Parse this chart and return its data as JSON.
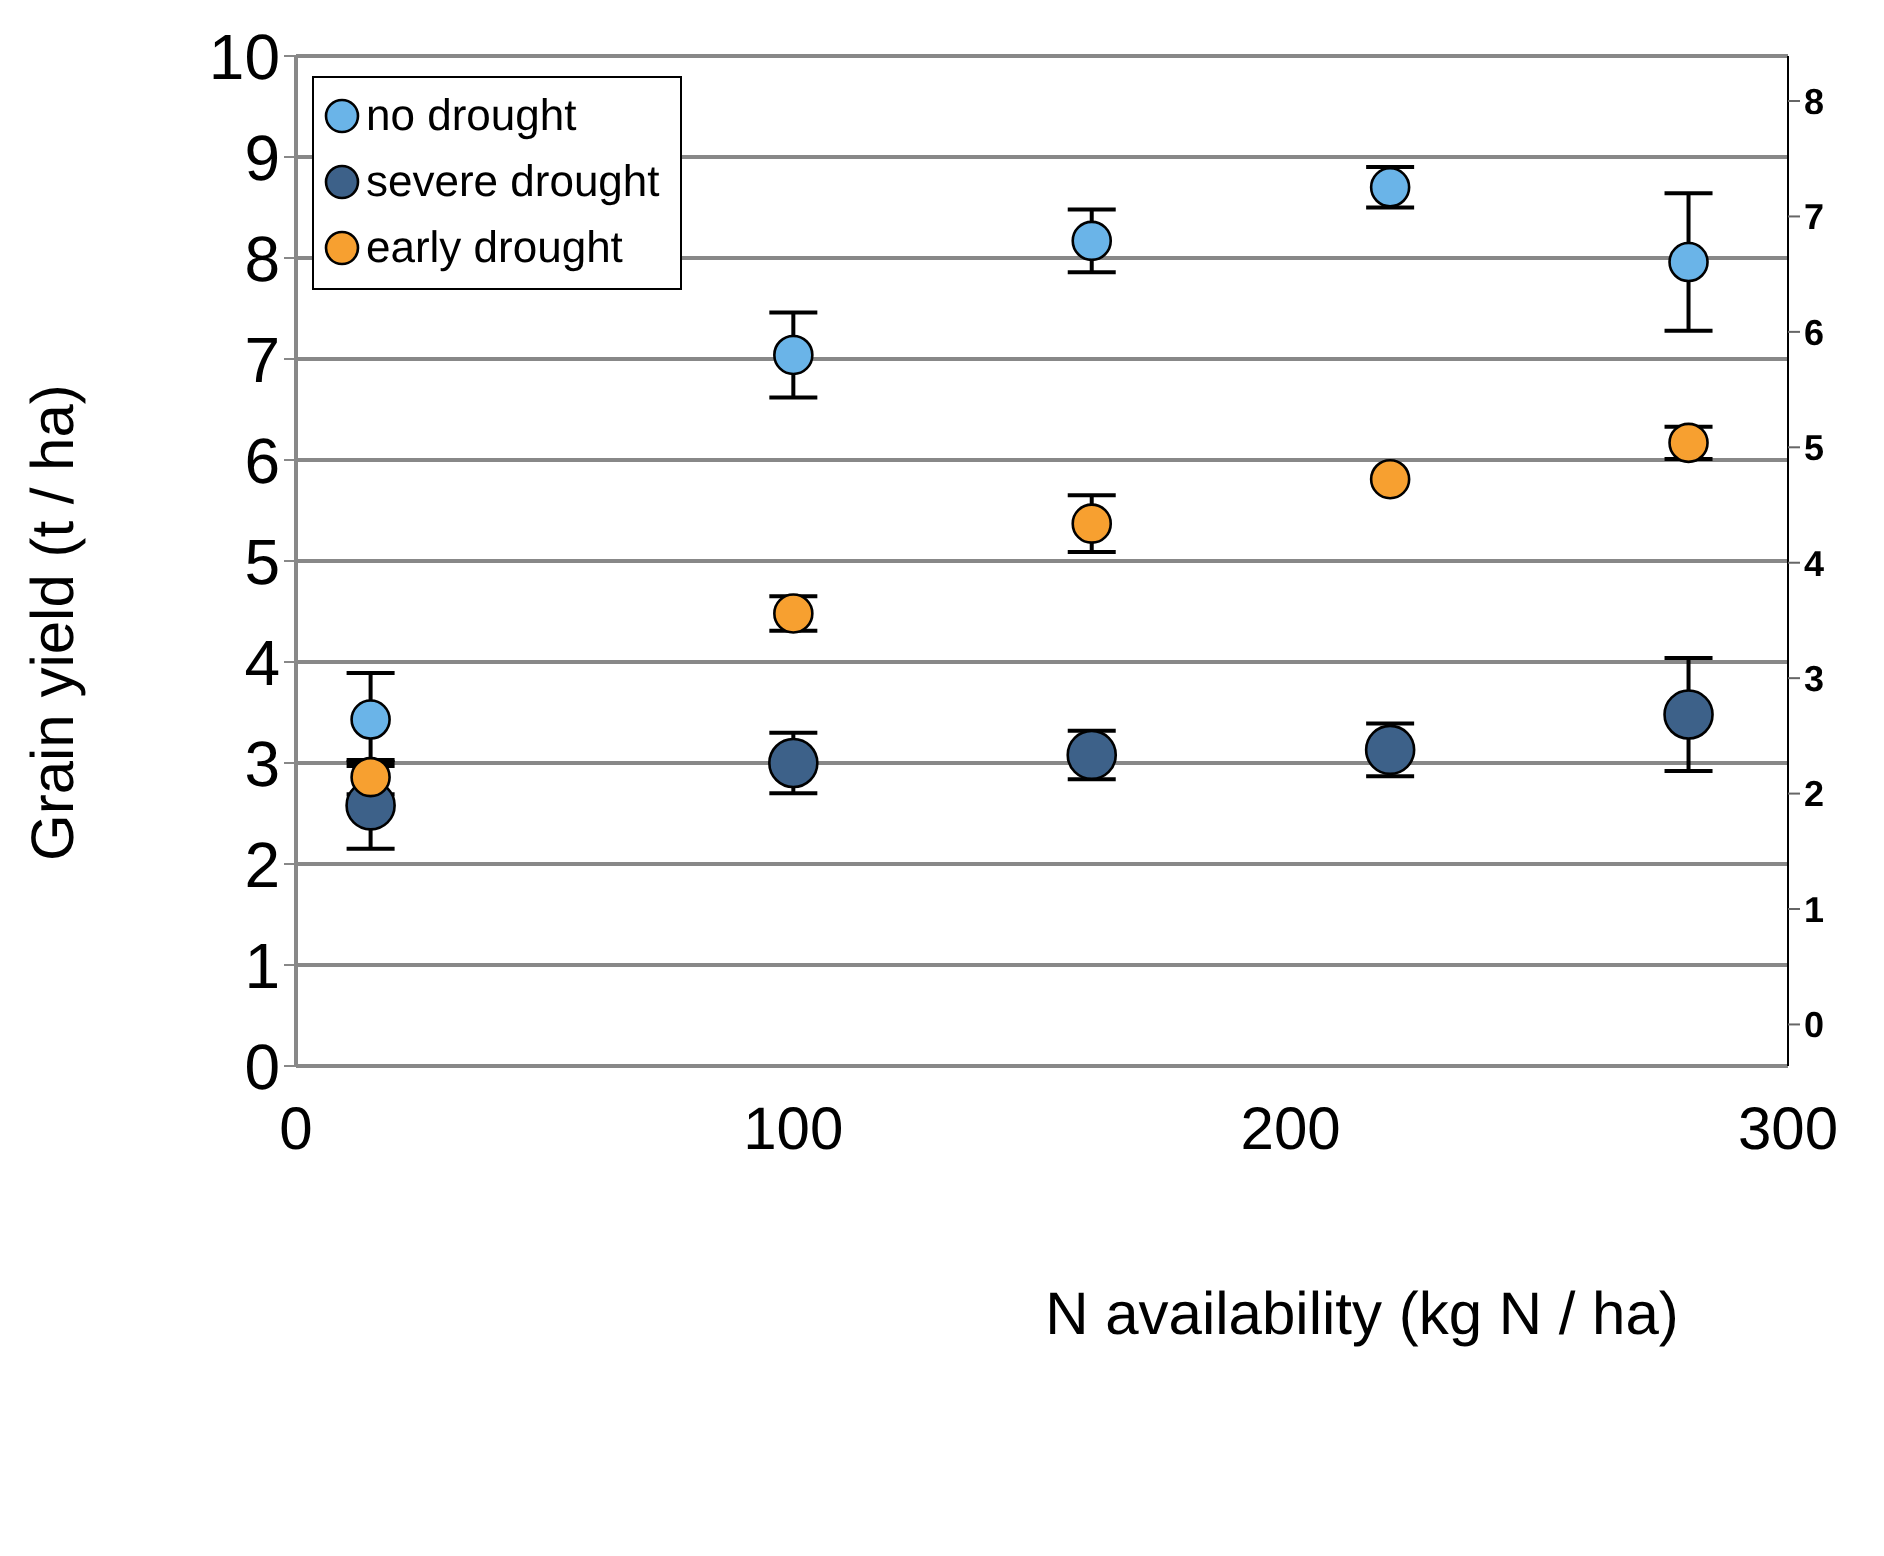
{
  "chart_data": {
    "type": "scatter",
    "xlabel": "N availability (kg N / ha)",
    "ylabel": "Grain yield (t /  ha)",
    "x": [
      15,
      100,
      160,
      220,
      280
    ],
    "series": [
      {
        "name": "no drought",
        "color": "#6ab4e8",
        "values": [
          3.43,
          7.04,
          8.17,
          8.7,
          7.96
        ],
        "errors": [
          0.46,
          0.42,
          0.31,
          0.2,
          0.68
        ]
      },
      {
        "name": "severe drought",
        "color": "#3d6189",
        "values": [
          2.58,
          3.0,
          3.08,
          3.13,
          3.48
        ],
        "errors": [
          0.43,
          0.3,
          0.24,
          0.26,
          0.56
        ]
      },
      {
        "name": "early drought",
        "color": "#f7a030",
        "values": [
          2.86,
          4.48,
          5.37,
          5.81,
          6.17
        ],
        "errors": [
          0.17,
          0.17,
          0.28,
          null,
          0.16
        ]
      }
    ],
    "xlim": [
      0,
      300
    ],
    "xticks": [
      0,
      100,
      200,
      300
    ],
    "ylim": [
      0,
      10
    ],
    "yticks": [
      0,
      1,
      2,
      3,
      4,
      5,
      6,
      7,
      8,
      9,
      10
    ],
    "y2lim": [
      -0.36,
      8.39
    ],
    "y2ticks": [
      0,
      1,
      2,
      3,
      4,
      5,
      6,
      7,
      8
    ],
    "grid": "y",
    "legend": "top left",
    "marker": "circle"
  }
}
